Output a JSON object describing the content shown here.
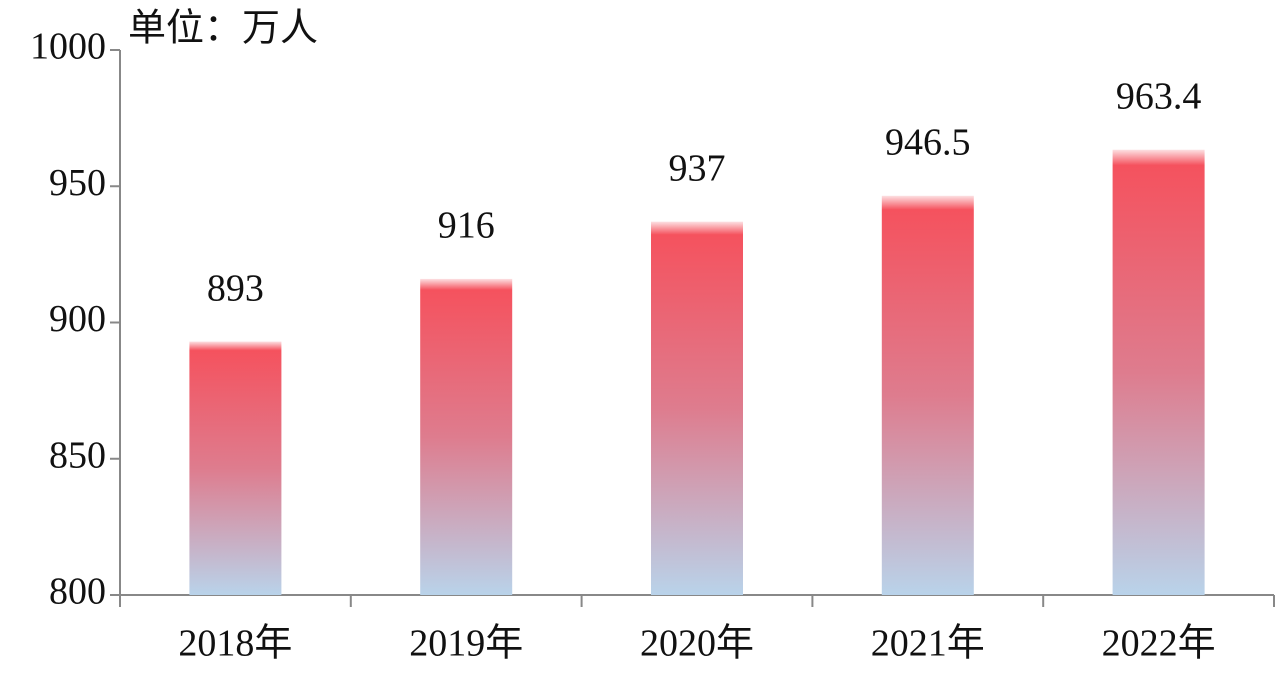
{
  "chart_data": {
    "type": "bar",
    "unit_label": "单位：万人",
    "categories": [
      "2018年",
      "2019年",
      "2020年",
      "2021年",
      "2022年"
    ],
    "values": [
      893,
      916,
      937,
      946.5,
      963.4
    ],
    "color": "#f5525e",
    "gradient_bottom_color": "#b9d3ea",
    "ylim": [
      800,
      1000
    ],
    "yticks": [
      800,
      850,
      900,
      950,
      1000
    ],
    "grid": false
  }
}
